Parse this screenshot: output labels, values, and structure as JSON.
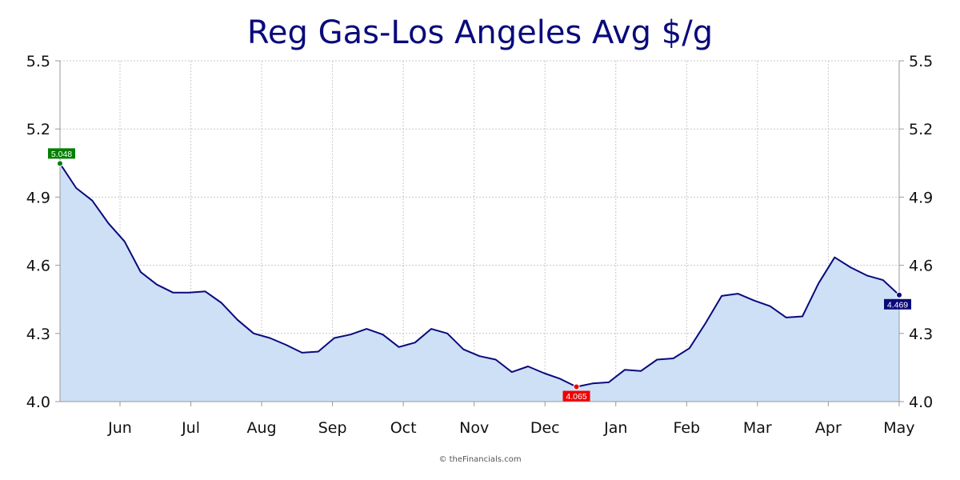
{
  "chart_data": {
    "type": "area",
    "title": "Reg Gas-Los Angeles Avg $/g",
    "ylim": [
      4.0,
      5.5
    ],
    "y_ticks": [
      "4.0",
      "4.3",
      "4.6",
      "4.9",
      "5.2",
      "5.5"
    ],
    "y_tick_values": [
      4.0,
      4.3,
      4.6,
      4.9,
      5.2,
      5.5
    ],
    "x_tick_labels": [
      "Jun",
      "Jul",
      "Aug",
      "Sep",
      "Oct",
      "Nov",
      "Dec",
      "Jan",
      "Feb",
      "Mar",
      "Apr",
      "May"
    ],
    "grid": true,
    "dual_y_axis": true,
    "series": [
      {
        "values": [
          5.048,
          4.94,
          4.885,
          4.785,
          4.705,
          4.57,
          4.515,
          4.48,
          4.48,
          4.485,
          4.435,
          4.36,
          4.3,
          4.28,
          4.25,
          4.215,
          4.22,
          4.28,
          4.295,
          4.32,
          4.295,
          4.24,
          4.26,
          4.32,
          4.3,
          4.23,
          4.2,
          4.185,
          4.13,
          4.155,
          4.125,
          4.1,
          4.065,
          4.08,
          4.085,
          4.14,
          4.135,
          4.185,
          4.19,
          4.235,
          4.345,
          4.465,
          4.475,
          4.445,
          4.42,
          4.37,
          4.375,
          4.52,
          4.635,
          4.59,
          4.555,
          4.535,
          4.469
        ],
        "color": "#0a0a7c",
        "fill": "#cde0f6"
      }
    ],
    "labels": {
      "max": {
        "text": "5.048",
        "index": 0,
        "color": "#008000"
      },
      "min": {
        "text": "4.065",
        "index": 32,
        "color": "#ee0000"
      },
      "last": {
        "text": "4.469",
        "index": 52,
        "color": "#0a0a7c"
      }
    }
  },
  "credit": "© theFinancials.com"
}
